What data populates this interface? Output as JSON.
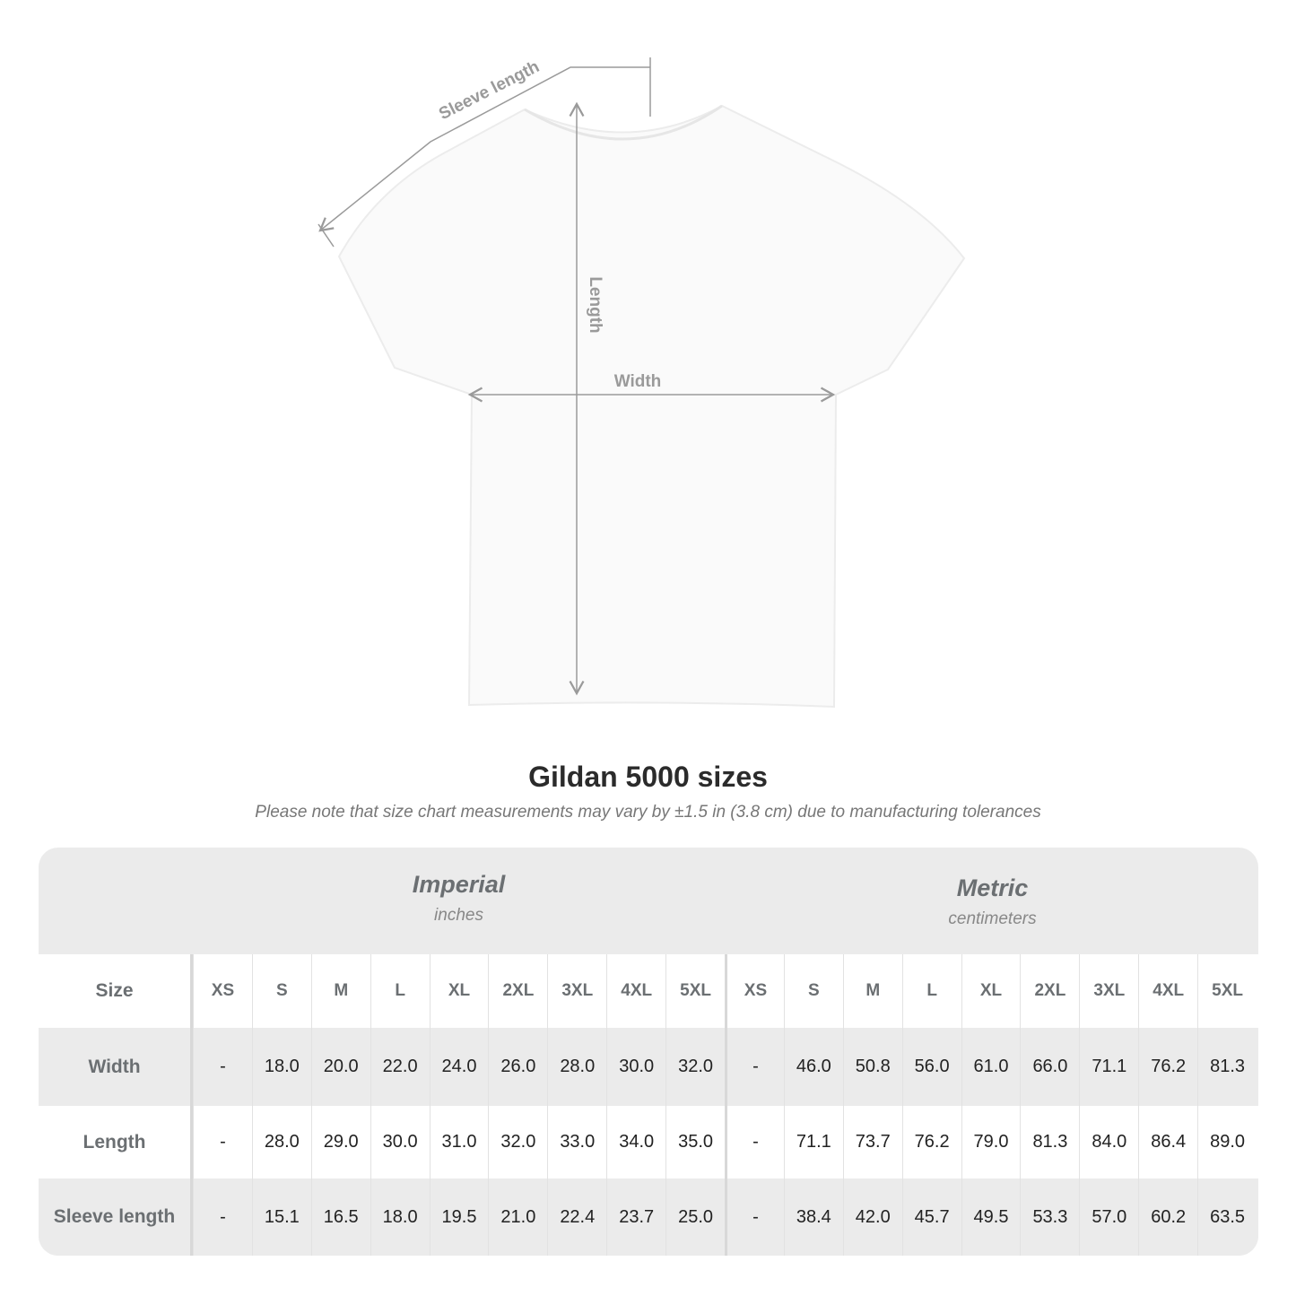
{
  "diagram": {
    "labels": {
      "sleeve": "Sleeve length",
      "length": "Length",
      "width": "Width"
    },
    "line_color": "#9a9a9a"
  },
  "title": "Gildan 5000 sizes",
  "subtitle": "Please note that size chart measurements may vary by ±1.5 in (3.8 cm) due to manufacturing tolerances",
  "table": {
    "imperial": {
      "label": "Imperial",
      "unit": "inches"
    },
    "metric": {
      "label": "Metric",
      "unit": "centimeters"
    },
    "size_label": "Size",
    "sizes": [
      "XS",
      "S",
      "M",
      "L",
      "XL",
      "2XL",
      "3XL",
      "4XL",
      "5XL"
    ],
    "rows": [
      {
        "label": "Width",
        "imperial": [
          "-",
          "18.0",
          "20.0",
          "22.0",
          "24.0",
          "26.0",
          "28.0",
          "30.0",
          "32.0"
        ],
        "metric": [
          "-",
          "46.0",
          "50.8",
          "56.0",
          "61.0",
          "66.0",
          "71.1",
          "76.2",
          "81.3"
        ]
      },
      {
        "label": "Length",
        "imperial": [
          "-",
          "28.0",
          "29.0",
          "30.0",
          "31.0",
          "32.0",
          "33.0",
          "34.0",
          "35.0"
        ],
        "metric": [
          "-",
          "71.1",
          "73.7",
          "76.2",
          "79.0",
          "81.3",
          "84.0",
          "86.4",
          "89.0"
        ]
      },
      {
        "label": "Sleeve length",
        "imperial": [
          "-",
          "15.1",
          "16.5",
          "18.0",
          "19.5",
          "21.0",
          "22.4",
          "23.7",
          "25.0"
        ],
        "metric": [
          "-",
          "38.4",
          "42.0",
          "45.7",
          "49.5",
          "53.3",
          "57.0",
          "60.2",
          "63.5"
        ]
      }
    ]
  }
}
